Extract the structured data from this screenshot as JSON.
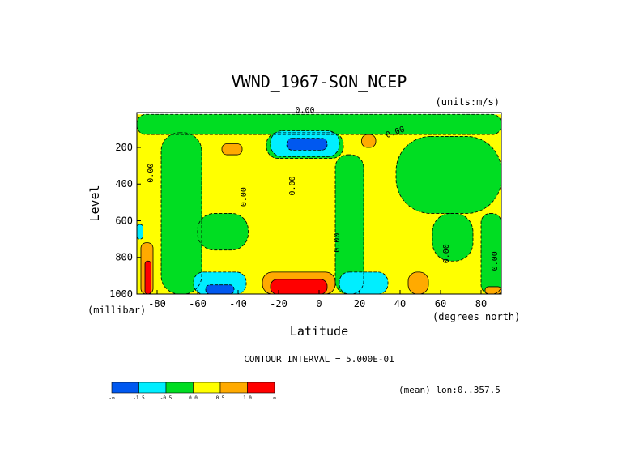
{
  "chart_data": {
    "type": "heatmap",
    "title": "VWND_1967-SON_NCEP",
    "units_label": "(units:m/s)",
    "xlabel": "Latitude",
    "ylabel": "Level",
    "x_unit_label": "(degrees_north)",
    "y_unit_label": "(millibar)",
    "xlim": [
      -90,
      90
    ],
    "ylim": [
      1000,
      10
    ],
    "x_ticks": [
      {
        "value": -80,
        "label": "-80"
      },
      {
        "value": -60,
        "label": "-60"
      },
      {
        "value": -40,
        "label": "-40"
      },
      {
        "value": -20,
        "label": "-20"
      },
      {
        "value": 0,
        "label": "0"
      },
      {
        "value": 20,
        "label": "20"
      },
      {
        "value": 40,
        "label": "40"
      },
      {
        "value": 60,
        "label": "60"
      },
      {
        "value": 80,
        "label": "80"
      }
    ],
    "y_ticks": [
      {
        "value": 200,
        "label": "200"
      },
      {
        "value": 400,
        "label": "400"
      },
      {
        "value": 600,
        "label": "600"
      },
      {
        "value": 800,
        "label": "800"
      },
      {
        "value": 1000,
        "label": "1000"
      }
    ],
    "contour_interval_text": "CONTOUR INTERVAL = 5.000E-01",
    "contour_labels": [
      {
        "lat": -7,
        "lev": 10,
        "text": "0.00"
      },
      {
        "lat": 38,
        "lev": 130,
        "text": "0.00"
      },
      {
        "lat": -82,
        "lev": 340,
        "text": "0.00"
      },
      {
        "lat": -36,
        "lev": 470,
        "text": "0.00"
      },
      {
        "lat": -12,
        "lev": 410,
        "text": "0.00"
      },
      {
        "lat": 10,
        "lev": 720,
        "text": "0.00"
      },
      {
        "lat": 64,
        "lev": 780,
        "text": "0.00"
      },
      {
        "lat": 88,
        "lev": 820,
        "text": "0.00"
      }
    ],
    "levels": [
      "-∞",
      "-1.5",
      "-0.5",
      "0.0",
      "0.5",
      "1.0",
      "∞"
    ],
    "colors": [
      "#0058f0",
      "#00eeff",
      "#00dd22",
      "#ffff00",
      "#ffaa00",
      "#ff0000"
    ],
    "fields": [
      {
        "name": "base",
        "value": 0.25,
        "cells": [
          [
            -90,
            20,
            90,
            1000
          ]
        ]
      },
      {
        "name": "green-top-band",
        "value": -0.25,
        "cells": [
          [
            -90,
            20,
            90,
            130
          ]
        ]
      },
      {
        "name": "green-left-column",
        "value": -0.25,
        "cells": [
          [
            -78,
            120,
            -58,
            1000
          ]
        ]
      },
      {
        "name": "green-left-middle",
        "value": -0.25,
        "cells": [
          [
            -60,
            560,
            -35,
            760
          ]
        ]
      },
      {
        "name": "green-center-upper",
        "value": -0.25,
        "cells": [
          [
            -26,
            120,
            12,
            260
          ]
        ]
      },
      {
        "name": "green-eq-column",
        "value": -0.25,
        "cells": [
          [
            8,
            240,
            22,
            1000
          ]
        ]
      },
      {
        "name": "green-right-upper",
        "value": -0.25,
        "cells": [
          [
            38,
            140,
            90,
            560
          ]
        ]
      },
      {
        "name": "green-right-column",
        "value": -0.25,
        "cells": [
          [
            56,
            560,
            76,
            820
          ]
        ]
      },
      {
        "name": "green-far-right",
        "value": -0.25,
        "cells": [
          [
            80,
            560,
            90,
            1000
          ]
        ]
      },
      {
        "name": "cyan-upper-core",
        "value": -1.0,
        "cells": [
          [
            -24,
            110,
            10,
            250
          ]
        ]
      },
      {
        "name": "blue-upper-core",
        "value": -2.0,
        "cells": [
          [
            -16,
            150,
            4,
            215
          ]
        ]
      },
      {
        "name": "cyan-lower-left",
        "value": -1.0,
        "cells": [
          [
            -62,
            880,
            -36,
            1000
          ]
        ]
      },
      {
        "name": "blue-lower-left",
        "value": -2.0,
        "cells": [
          [
            -56,
            950,
            -42,
            1000
          ]
        ]
      },
      {
        "name": "cyan-lower-eq",
        "value": -1.0,
        "cells": [
          [
            10,
            880,
            34,
            1000
          ]
        ]
      },
      {
        "name": "orange-upper-left",
        "value": 0.75,
        "cells": [
          [
            -48,
            180,
            -38,
            240
          ]
        ]
      },
      {
        "name": "orange-upper-right",
        "value": 0.75,
        "cells": [
          [
            21,
            130,
            28,
            200
          ]
        ]
      },
      {
        "name": "orange-lower-center",
        "value": 0.75,
        "cells": [
          [
            -28,
            880,
            8,
            1000
          ]
        ]
      },
      {
        "name": "red-lower-center",
        "value": 1.5,
        "cells": [
          [
            -24,
            920,
            4,
            1000
          ]
        ]
      },
      {
        "name": "orange-lower-right",
        "value": 0.75,
        "cells": [
          [
            44,
            880,
            54,
            1000
          ]
        ]
      },
      {
        "name": "orange-far-right",
        "value": 0.75,
        "cells": [
          [
            82,
            960,
            90,
            1000
          ]
        ]
      },
      {
        "name": "orange-left-edge",
        "value": 0.75,
        "cells": [
          [
            -88,
            720,
            -82,
            1000
          ]
        ]
      },
      {
        "name": "red-left-edge",
        "value": 1.5,
        "cells": [
          [
            -86,
            820,
            -83,
            1000
          ]
        ]
      },
      {
        "name": "cyan-left-edge",
        "value": -1.0,
        "cells": [
          [
            -90,
            620,
            -87,
            700
          ]
        ]
      }
    ],
    "colorbar_labels": [
      "-∞",
      "-1.5",
      "-0.5",
      "0.0",
      "0.5",
      "1.0",
      "∞"
    ],
    "footer_text": "(mean) lon:0..357.5"
  }
}
